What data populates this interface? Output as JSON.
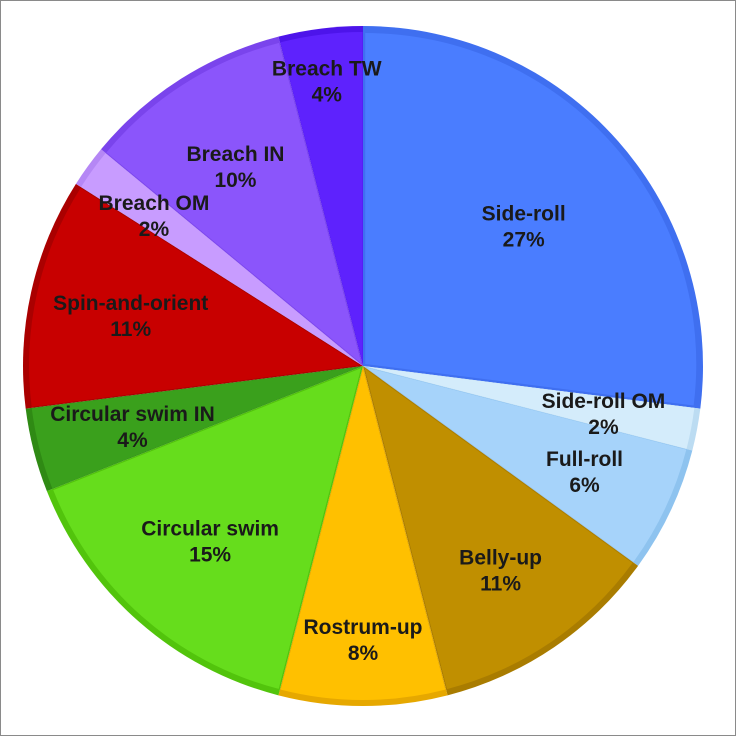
{
  "chart_data": {
    "type": "pie",
    "title": "",
    "slices": [
      {
        "label": "Side-roll",
        "pct_label": "27%",
        "value": 27,
        "color": "#4a7dff",
        "edge": "#3f6ff0",
        "label_r": 0.63
      },
      {
        "label": "Side-roll OM",
        "pct_label": "2%",
        "value": 2,
        "color": "#d4ecfb",
        "edge": "#bcdcf2",
        "label_r": 0.72
      },
      {
        "label": "Full-roll",
        "pct_label": "6%",
        "value": 6,
        "color": "#a6d3fa",
        "edge": "#8ec3ef",
        "label_r": 0.72
      },
      {
        "label": "Belly-up",
        "pct_label": "11%",
        "value": 11,
        "color": "#c08f00",
        "edge": "#a97c00",
        "label_r": 0.72
      },
      {
        "label": "Rostrum-up",
        "pct_label": "8%",
        "value": 8,
        "color": "#ffc000",
        "edge": "#e6a800",
        "label_r": 0.8
      },
      {
        "label": "Circular swim",
        "pct_label": "15%",
        "value": 15,
        "color": "#66dd1c",
        "edge": "#52c40c",
        "label_r": 0.68
      },
      {
        "label": "Circular swim IN",
        "pct_label": "4%",
        "value": 4,
        "color": "#3aa01c",
        "edge": "#2f8a14",
        "label_r": 0.7
      },
      {
        "label": "Spin-and-orient",
        "pct_label": "11%",
        "value": 11,
        "color": "#c80000",
        "edge": "#aa0000",
        "label_r": 0.7
      },
      {
        "label": "Breach OM",
        "pct_label": "2%",
        "value": 2,
        "color": "#c89cff",
        "edge": "#b587f5",
        "label_r": 0.76
      },
      {
        "label": "Breach IN",
        "pct_label": "10%",
        "value": 10,
        "color": "#8b55fb",
        "edge": "#7a44ec",
        "label_r": 0.7
      },
      {
        "label": "Breach TW",
        "pct_label": "4%",
        "value": 4,
        "color": "#5e22fd",
        "edge": "#4d14ea",
        "label_r": 0.85
      }
    ]
  }
}
